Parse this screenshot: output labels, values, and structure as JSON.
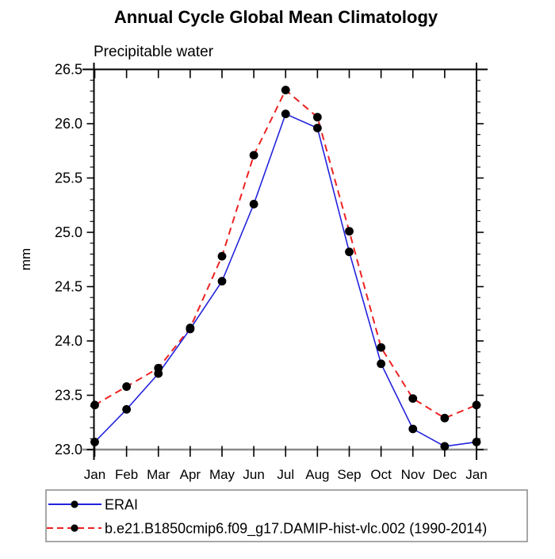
{
  "chart_data": {
    "type": "line",
    "title": "Annual Cycle Global Mean Climatology",
    "subtitle": "Precipitable water",
    "ylabel": "mm",
    "xlabel": "",
    "categories": [
      "Jan",
      "Feb",
      "Mar",
      "Apr",
      "May",
      "Jun",
      "Jul",
      "Aug",
      "Sep",
      "Oct",
      "Nov",
      "Dec",
      "Jan"
    ],
    "ylim": [
      23.0,
      26.5
    ],
    "ytick_step": 0.5,
    "ytick_minor_step": 0.1,
    "ytick_labels": [
      "23.0",
      "23.5",
      "24.0",
      "24.5",
      "25.0",
      "25.5",
      "26.0",
      "26.5"
    ],
    "grid": false,
    "legend_position": "bottom-box",
    "series": [
      {
        "name": "ERAI",
        "color": "#2222dd",
        "line_style": "solid",
        "marker": "circle",
        "marker_color": "#000000",
        "values": [
          23.07,
          23.37,
          23.7,
          24.11,
          24.55,
          25.26,
          26.09,
          25.96,
          24.82,
          23.79,
          23.19,
          23.03,
          23.07
        ]
      },
      {
        "name": "b.e21.B1850cmip6.f09_g17.DAMIP-hist-vlc.002 (1990-2014)",
        "color": "#ee2222",
        "line_style": "dashed",
        "marker": "circle",
        "marker_color": "#000000",
        "values": [
          23.41,
          23.58,
          23.75,
          24.12,
          24.78,
          25.71,
          26.31,
          26.06,
          25.01,
          23.94,
          23.47,
          23.29,
          23.41
        ]
      }
    ],
    "colors": {
      "axis": "#000000",
      "baseline_axis": "#8a8a8a",
      "legend_border": "#8a8a8a",
      "background": "#ffffff",
      "text": "#000000"
    }
  }
}
